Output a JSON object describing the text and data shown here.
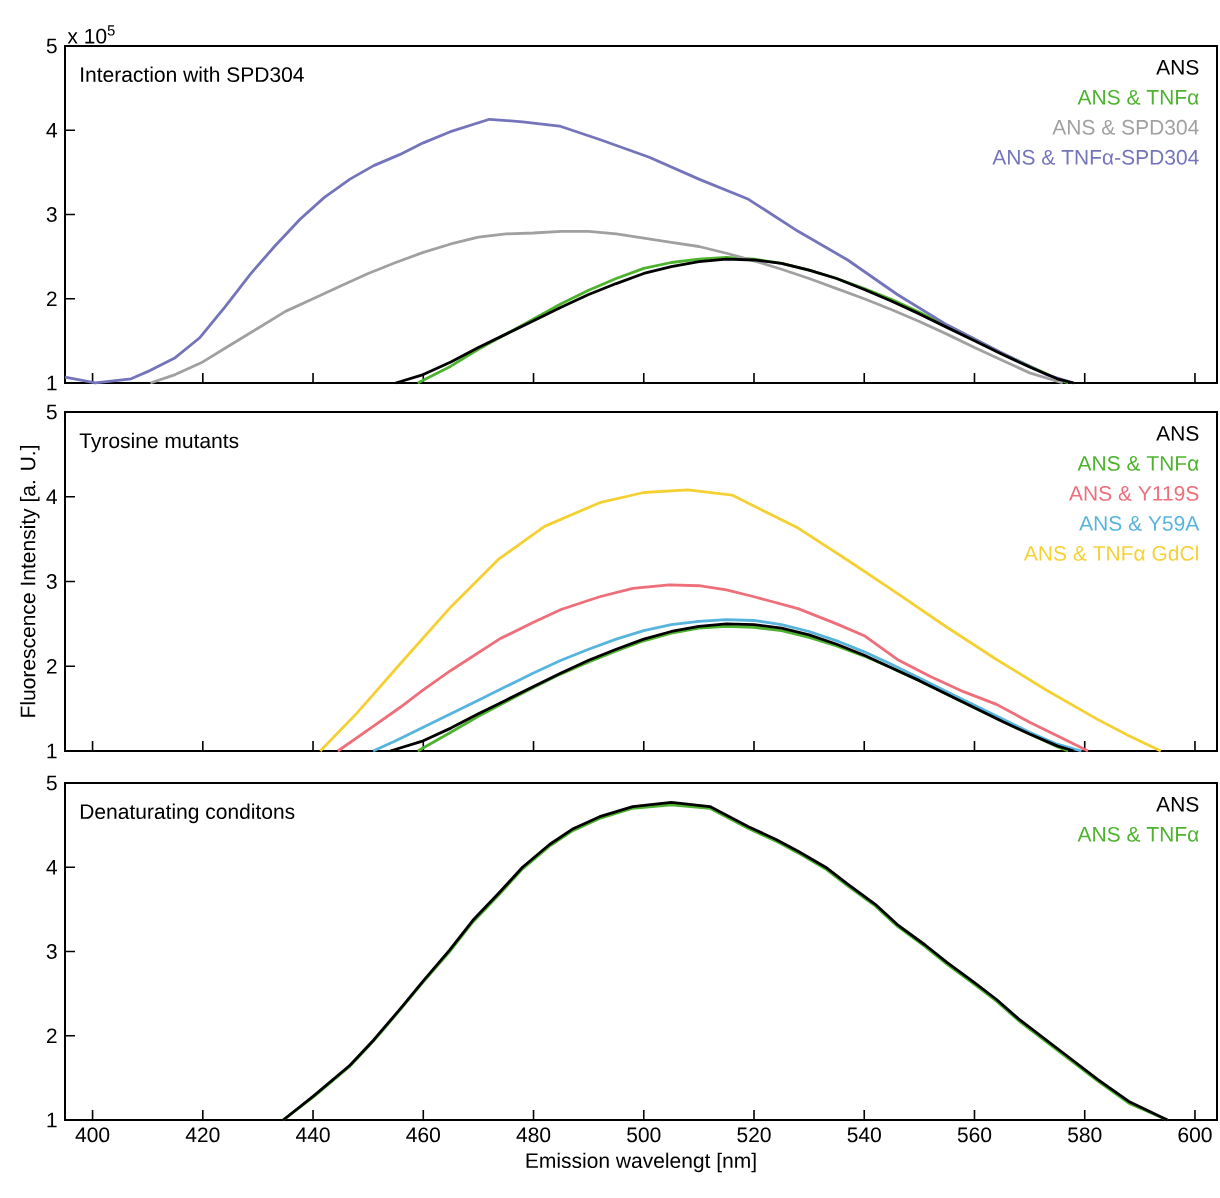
{
  "chart_data": [
    {
      "type": "line",
      "title": "Interaction with SPD304",
      "annotations": [
        "x 10$^{5}$"
      ],
      "xlim": [
        395,
        604
      ],
      "xticks": [
        400,
        420,
        440,
        460,
        480,
        500,
        520,
        540,
        560,
        580,
        600
      ],
      "ylim": [
        1,
        5
      ],
      "yticks": [
        1,
        2,
        3,
        4,
        5
      ],
      "tick_labels": "y",
      "legend": "top right",
      "series": [
        {
          "name": "ANS",
          "color": "#000000",
          "x": [
            455,
            460,
            465,
            470,
            475,
            480,
            485,
            490,
            495,
            500,
            505,
            510,
            515,
            520,
            525,
            530,
            535,
            540,
            545,
            550,
            555,
            560,
            565,
            570,
            575,
            578
          ],
          "values": [
            1.0,
            1.1,
            1.25,
            1.42,
            1.58,
            1.74,
            1.9,
            2.05,
            2.18,
            2.3,
            2.38,
            2.44,
            2.47,
            2.46,
            2.42,
            2.34,
            2.24,
            2.11,
            1.97,
            1.82,
            1.66,
            1.5,
            1.34,
            1.19,
            1.05,
            1.0
          ]
        },
        {
          "name": "ANS & TNFα",
          "color": "#4db32e",
          "x": [
            459,
            465,
            470,
            475,
            480,
            485,
            490,
            495,
            500,
            505,
            510,
            515,
            520,
            525,
            530,
            535,
            540,
            545,
            550,
            555,
            560,
            565,
            570,
            575,
            577
          ],
          "values": [
            1.0,
            1.2,
            1.4,
            1.58,
            1.76,
            1.94,
            2.1,
            2.24,
            2.36,
            2.43,
            2.47,
            2.49,
            2.47,
            2.42,
            2.34,
            2.24,
            2.12,
            1.99,
            1.84,
            1.68,
            1.52,
            1.35,
            1.2,
            1.05,
            1.0
          ]
        },
        {
          "name": "ANS & SPD304",
          "color": "#a0a0a0",
          "x": [
            410.5,
            415,
            420,
            425,
            430,
            435,
            440,
            445,
            450,
            455,
            460,
            465,
            470,
            475,
            480,
            485,
            490,
            495,
            500,
            505,
            510,
            515,
            520,
            525,
            530,
            535,
            540,
            545,
            550,
            555,
            560,
            565,
            570,
            576
          ],
          "values": [
            1.0,
            1.1,
            1.25,
            1.45,
            1.65,
            1.85,
            2.0,
            2.15,
            2.3,
            2.43,
            2.55,
            2.65,
            2.73,
            2.77,
            2.78,
            2.8,
            2.8,
            2.77,
            2.72,
            2.67,
            2.62,
            2.54,
            2.45,
            2.35,
            2.24,
            2.12,
            2.0,
            1.87,
            1.73,
            1.58,
            1.42,
            1.27,
            1.12,
            1.0
          ]
        },
        {
          "name": "ANS & TNFα-SPD304",
          "color": "#7474bb",
          "x": [
            395,
            400.5,
            407,
            410.5,
            415,
            419.5,
            424,
            428.6,
            433,
            437.6,
            442,
            446.7,
            451,
            455.7,
            460,
            464.8,
            472,
            478,
            484.7,
            492,
            501,
            510,
            519,
            528,
            537,
            546,
            555,
            564,
            573,
            578
          ],
          "values": [
            1.07,
            1.0,
            1.05,
            1.15,
            1.3,
            1.54,
            1.9,
            2.29,
            2.62,
            2.94,
            3.2,
            3.42,
            3.58,
            3.71,
            3.85,
            3.98,
            4.13,
            4.1,
            4.05,
            3.89,
            3.68,
            3.42,
            3.18,
            2.8,
            2.46,
            2.05,
            1.69,
            1.39,
            1.1,
            1.0
          ]
        }
      ]
    },
    {
      "type": "line",
      "title": "Tyrosine mutants",
      "ylabel": "Fluorescence Intensity [a. U.]",
      "xlim": [
        395,
        604
      ],
      "xticks": [
        400,
        420,
        440,
        460,
        480,
        500,
        520,
        540,
        560,
        580,
        600
      ],
      "ylim": [
        1,
        5
      ],
      "yticks": [
        1,
        2,
        3,
        4,
        5
      ],
      "tick_labels": "y",
      "legend": "top right",
      "series": [
        {
          "name": "ANS",
          "color": "#000000",
          "x": [
            454,
            460,
            465,
            470,
            475,
            480,
            485,
            490,
            495,
            500,
            505,
            510,
            515,
            520,
            525,
            530,
            535,
            540,
            545,
            550,
            555,
            560,
            565,
            570,
            575,
            578
          ],
          "values": [
            1.0,
            1.12,
            1.27,
            1.44,
            1.6,
            1.76,
            1.92,
            2.07,
            2.2,
            2.32,
            2.41,
            2.47,
            2.5,
            2.49,
            2.45,
            2.37,
            2.26,
            2.13,
            1.98,
            1.83,
            1.67,
            1.51,
            1.35,
            1.2,
            1.06,
            1.0
          ]
        },
        {
          "name": "ANS & TNFα",
          "color": "#4db32e",
          "x": [
            459,
            465,
            470,
            475,
            480,
            485,
            490,
            495,
            500,
            505,
            510,
            515,
            520,
            525,
            530,
            535,
            540,
            545,
            550,
            555,
            560,
            565,
            570,
            575,
            577
          ],
          "values": [
            1.0,
            1.22,
            1.41,
            1.58,
            1.75,
            1.91,
            2.05,
            2.18,
            2.3,
            2.39,
            2.45,
            2.47,
            2.46,
            2.42,
            2.34,
            2.24,
            2.12,
            1.98,
            1.83,
            1.67,
            1.51,
            1.35,
            1.2,
            1.05,
            1.0
          ]
        },
        {
          "name": "ANS & Y119S",
          "color": "#ee6e7a",
          "x": [
            444.5,
            450,
            455.7,
            460,
            465,
            473.8,
            480,
            485,
            492,
            498,
            504.6,
            510,
            515,
            520,
            528,
            535,
            540,
            546,
            552,
            558,
            564,
            570,
            575,
            580.6
          ],
          "values": [
            1.0,
            1.25,
            1.51,
            1.72,
            1.95,
            2.32,
            2.52,
            2.67,
            2.82,
            2.92,
            2.96,
            2.95,
            2.9,
            2.82,
            2.68,
            2.5,
            2.36,
            2.08,
            1.88,
            1.7,
            1.55,
            1.34,
            1.18,
            1.0
          ]
        },
        {
          "name": "ANS & Y59A",
          "color": "#57b4dd",
          "x": [
            450.9,
            455,
            460,
            465,
            470,
            475,
            480,
            485,
            490,
            495,
            500,
            505,
            510,
            515,
            520,
            525,
            530,
            535,
            540,
            545,
            550,
            555,
            560,
            565,
            570,
            575,
            579.4
          ],
          "values": [
            1.0,
            1.12,
            1.28,
            1.44,
            1.6,
            1.76,
            1.92,
            2.07,
            2.2,
            2.32,
            2.42,
            2.49,
            2.53,
            2.55,
            2.54,
            2.49,
            2.41,
            2.3,
            2.17,
            2.02,
            1.86,
            1.7,
            1.54,
            1.38,
            1.22,
            1.08,
            1.0
          ]
        },
        {
          "name": "ANS & TNFα GdCl",
          "color": "#f5d033",
          "x": [
            441.3,
            448,
            455.7,
            465,
            473.8,
            482,
            492,
            500,
            508,
            516,
            528,
            537,
            546,
            555,
            564,
            573,
            582.4,
            588,
            593.8
          ],
          "values": [
            1.0,
            1.45,
            2.02,
            2.7,
            3.27,
            3.65,
            3.93,
            4.05,
            4.08,
            4.02,
            3.63,
            3.25,
            2.86,
            2.46,
            2.08,
            1.72,
            1.37,
            1.18,
            1.0
          ]
        }
      ]
    },
    {
      "type": "line",
      "title": "Denaturating conditons",
      "xlabel": "Emission wavelengt [nm]",
      "xlim": [
        395,
        604
      ],
      "xticks": [
        400,
        420,
        440,
        460,
        480,
        500,
        520,
        540,
        560,
        580,
        600
      ],
      "ylim": [
        1,
        5
      ],
      "yticks": [
        1,
        2,
        3,
        4,
        5
      ],
      "legend": "top right",
      "series": [
        {
          "name": "ANS",
          "color": "#000000",
          "x": [
            434.6,
            440,
            446.7,
            451,
            455.7,
            460,
            464.8,
            469,
            473.8,
            478,
            482.9,
            487,
            492,
            498,
            505,
            512,
            519,
            524,
            528,
            533,
            537,
            542,
            546,
            551,
            555,
            560,
            564,
            568,
            573,
            578,
            582.4,
            588,
            595
          ],
          "values": [
            1.0,
            1.28,
            1.65,
            1.95,
            2.31,
            2.65,
            3.02,
            3.37,
            3.7,
            4.0,
            4.27,
            4.45,
            4.6,
            4.72,
            4.77,
            4.72,
            4.48,
            4.33,
            4.19,
            4.0,
            3.8,
            3.56,
            3.32,
            3.08,
            2.87,
            2.63,
            2.43,
            2.2,
            1.95,
            1.7,
            1.48,
            1.22,
            1.0
          ]
        },
        {
          "name": "ANS & TNFα",
          "color": "#4db32e",
          "x": [
            434.6,
            440,
            446.7,
            451,
            455.7,
            460,
            464.8,
            469,
            473.8,
            478,
            482.9,
            487,
            492,
            498,
            505,
            512,
            519,
            524,
            528,
            533,
            537,
            542,
            546,
            551,
            555,
            560,
            564,
            568,
            573,
            578,
            582.4,
            588,
            595
          ],
          "values": [
            1.0,
            1.27,
            1.64,
            1.94,
            2.3,
            2.64,
            3.0,
            3.35,
            3.68,
            3.98,
            4.25,
            4.43,
            4.58,
            4.7,
            4.74,
            4.7,
            4.46,
            4.31,
            4.17,
            3.98,
            3.78,
            3.54,
            3.3,
            3.06,
            2.85,
            2.61,
            2.41,
            2.18,
            1.93,
            1.68,
            1.46,
            1.2,
            1.0
          ]
        }
      ]
    }
  ]
}
